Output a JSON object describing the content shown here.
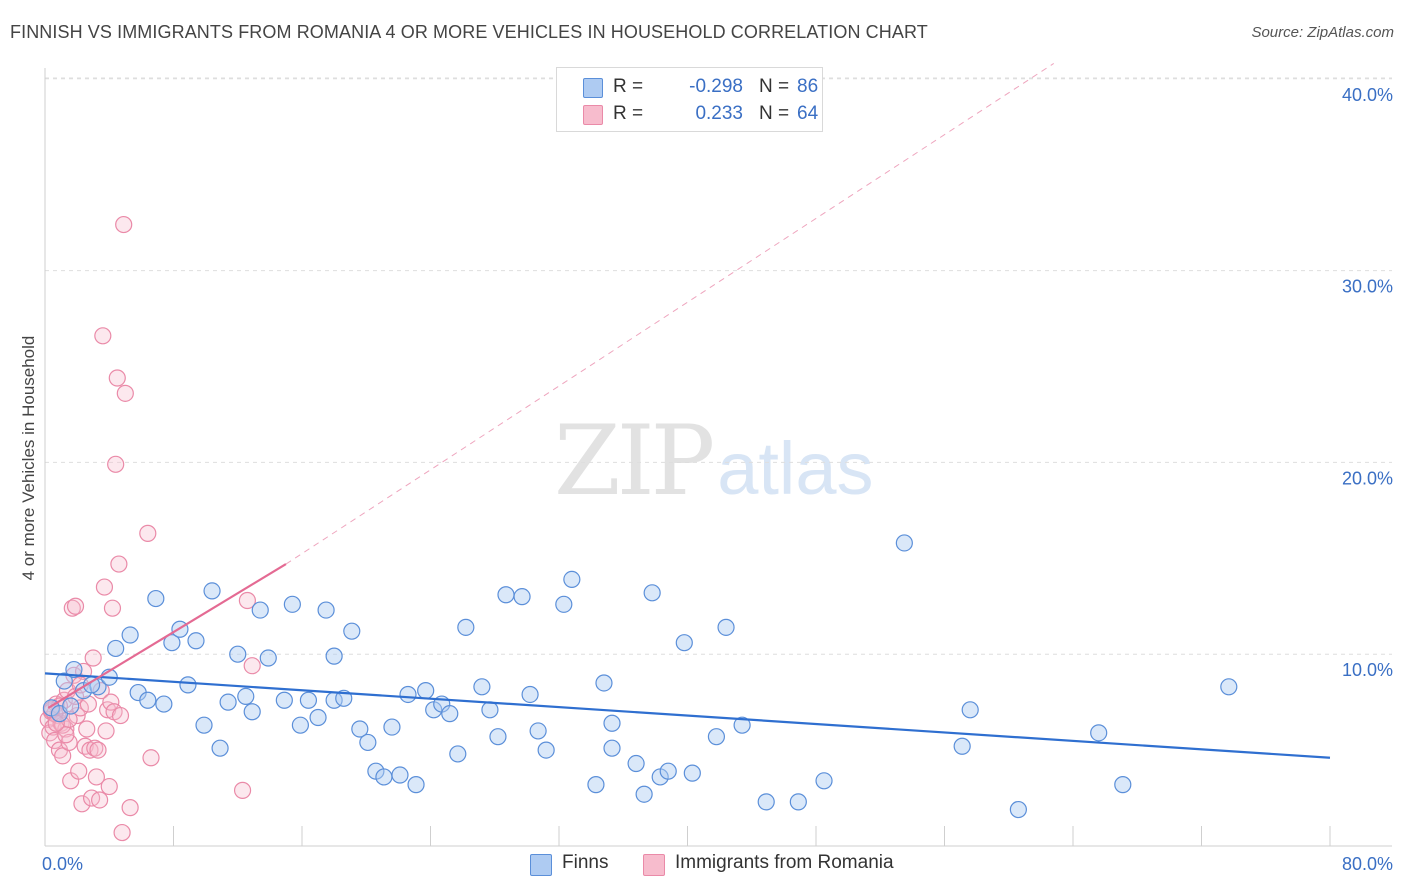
{
  "header": {
    "title": "FINNISH VS IMMIGRANTS FROM ROMANIA 4 OR MORE VEHICLES IN HOUSEHOLD CORRELATION CHART",
    "source": "Source: ZipAtlas.com"
  },
  "watermark": {
    "zip": "ZIP",
    "atlas": "atlas"
  },
  "legend": {
    "rows": [
      {
        "r_label": "R =",
        "r_value": "-0.298",
        "n_label": "N =",
        "n_value": "86",
        "color": "#aecbf2"
      },
      {
        "r_label": "R =",
        "r_value": "0.233",
        "n_label": "N =",
        "n_value": "64",
        "color": "#f7bccd"
      }
    ]
  },
  "bottom_legend": [
    {
      "label": "Finns",
      "color": "#aecbf2"
    },
    {
      "label": "Immigrants from Romania",
      "color": "#f7bccd"
    }
  ],
  "colors": {
    "finns_fill": "rgba(174,203,242,0.45)",
    "finns_stroke": "#5b8fd9",
    "finns_line": "#2f6fd0",
    "romania_fill": "rgba(247,188,205,0.35)",
    "romania_stroke": "#ea8aa8",
    "romania_line": "#e46a93",
    "axis_text": "#3a6fc4",
    "grid": "#dedede"
  },
  "chart_data": {
    "type": "scatter",
    "title": "FINNISH VS IMMIGRANTS FROM ROMANIA 4 OR MORE VEHICLES IN HOUSEHOLD CORRELATION CHART",
    "xlabel": "",
    "ylabel": "4 or more Vehicles in Household",
    "xlim": [
      0,
      80
    ],
    "ylim": [
      0,
      42
    ],
    "x_tick_labels": {
      "min": "0.0%",
      "max": "80.0%"
    },
    "y_ticks": [
      10,
      20,
      30,
      40
    ],
    "y_tick_labels": [
      "10.0%",
      "20.0%",
      "30.0%",
      "40.0%"
    ],
    "grid": "horizontal dashed",
    "legend_position": "top-center",
    "series": [
      {
        "name": "Finns",
        "points": [
          [
            0.4,
            7.2
          ],
          [
            1.2,
            8.6
          ],
          [
            1.8,
            9.2
          ],
          [
            2.4,
            8.1
          ],
          [
            3.3,
            8.3
          ],
          [
            4.0,
            8.8
          ],
          [
            4.4,
            10.3
          ],
          [
            5.3,
            11.0
          ],
          [
            5.8,
            8.0
          ],
          [
            6.4,
            7.6
          ],
          [
            6.9,
            12.9
          ],
          [
            7.4,
            7.4
          ],
          [
            7.9,
            10.6
          ],
          [
            8.4,
            11.3
          ],
          [
            8.9,
            8.4
          ],
          [
            9.4,
            10.7
          ],
          [
            9.9,
            6.3
          ],
          [
            10.4,
            13.3
          ],
          [
            10.9,
            5.1
          ],
          [
            11.4,
            7.5
          ],
          [
            12.0,
            10.0
          ],
          [
            12.5,
            7.8
          ],
          [
            12.9,
            7.0
          ],
          [
            13.4,
            12.3
          ],
          [
            13.9,
            9.8
          ],
          [
            14.9,
            7.6
          ],
          [
            15.4,
            12.6
          ],
          [
            15.9,
            6.3
          ],
          [
            16.4,
            7.6
          ],
          [
            17.0,
            6.7
          ],
          [
            17.5,
            12.3
          ],
          [
            18.0,
            7.6
          ],
          [
            18.0,
            9.9
          ],
          [
            18.6,
            7.7
          ],
          [
            19.1,
            11.2
          ],
          [
            19.6,
            6.1
          ],
          [
            20.1,
            5.4
          ],
          [
            20.6,
            3.9
          ],
          [
            21.1,
            3.6
          ],
          [
            21.6,
            6.2
          ],
          [
            22.1,
            3.7
          ],
          [
            22.6,
            7.9
          ],
          [
            23.1,
            3.2
          ],
          [
            23.7,
            8.1
          ],
          [
            24.2,
            7.1
          ],
          [
            24.7,
            7.4
          ],
          [
            25.2,
            6.9
          ],
          [
            25.7,
            4.8
          ],
          [
            26.2,
            11.4
          ],
          [
            27.2,
            8.3
          ],
          [
            27.7,
            7.1
          ],
          [
            28.2,
            5.7
          ],
          [
            28.7,
            13.1
          ],
          [
            29.7,
            13.0
          ],
          [
            30.2,
            7.9
          ],
          [
            30.7,
            6.0
          ],
          [
            31.2,
            5.0
          ],
          [
            32.3,
            12.6
          ],
          [
            32.8,
            13.9
          ],
          [
            34.3,
            3.2
          ],
          [
            34.8,
            8.5
          ],
          [
            35.3,
            6.4
          ],
          [
            35.3,
            5.1
          ],
          [
            36.8,
            4.3
          ],
          [
            37.3,
            2.7
          ],
          [
            37.8,
            13.2
          ],
          [
            38.3,
            3.6
          ],
          [
            38.8,
            3.9
          ],
          [
            39.8,
            10.6
          ],
          [
            40.3,
            3.8
          ],
          [
            41.8,
            5.7
          ],
          [
            42.4,
            11.4
          ],
          [
            43.4,
            6.3
          ],
          [
            44.9,
            2.3
          ],
          [
            46.9,
            2.3
          ],
          [
            48.5,
            3.4
          ],
          [
            53.5,
            15.8
          ],
          [
            57.1,
            5.2
          ],
          [
            57.6,
            7.1
          ],
          [
            60.6,
            1.9
          ],
          [
            65.6,
            5.9
          ],
          [
            67.1,
            3.2
          ],
          [
            73.7,
            8.3
          ],
          [
            0.9,
            6.9
          ],
          [
            2.9,
            8.4
          ],
          [
            1.6,
            7.3
          ]
        ]
      },
      {
        "name": "Immigrants from Romania",
        "points": [
          [
            0.2,
            6.6
          ],
          [
            0.3,
            5.9
          ],
          [
            0.4,
            7.0
          ],
          [
            0.5,
            6.2
          ],
          [
            0.6,
            5.5
          ],
          [
            0.7,
            7.4
          ],
          [
            0.8,
            6.8
          ],
          [
            0.9,
            5.0
          ],
          [
            1.0,
            6.4
          ],
          [
            1.1,
            4.7
          ],
          [
            1.2,
            7.6
          ],
          [
            1.3,
            6.1
          ],
          [
            1.4,
            8.1
          ],
          [
            1.5,
            5.4
          ],
          [
            1.6,
            3.4
          ],
          [
            1.7,
            12.4
          ],
          [
            1.8,
            8.9
          ],
          [
            1.9,
            12.5
          ],
          [
            2.0,
            6.8
          ],
          [
            2.1,
            3.9
          ],
          [
            2.2,
            7.2
          ],
          [
            2.3,
            2.2
          ],
          [
            2.4,
            9.1
          ],
          [
            2.5,
            5.2
          ],
          [
            2.6,
            6.1
          ],
          [
            2.7,
            7.4
          ],
          [
            2.8,
            5.0
          ],
          [
            2.9,
            2.5
          ],
          [
            3.0,
            9.8
          ],
          [
            3.1,
            5.1
          ],
          [
            3.2,
            3.6
          ],
          [
            3.3,
            5.0
          ],
          [
            3.4,
            2.4
          ],
          [
            3.5,
            8.1
          ],
          [
            3.6,
            26.6
          ],
          [
            3.7,
            13.5
          ],
          [
            3.8,
            6.0
          ],
          [
            3.9,
            7.1
          ],
          [
            4.0,
            3.1
          ],
          [
            4.1,
            7.5
          ],
          [
            4.2,
            12.4
          ],
          [
            4.3,
            7.0
          ],
          [
            4.4,
            19.9
          ],
          [
            4.5,
            24.4
          ],
          [
            4.6,
            14.7
          ],
          [
            4.7,
            6.8
          ],
          [
            4.8,
            0.7
          ],
          [
            4.9,
            32.4
          ],
          [
            5.0,
            23.6
          ],
          [
            5.3,
            2.0
          ],
          [
            6.4,
            16.3
          ],
          [
            6.6,
            4.6
          ],
          [
            12.3,
            2.9
          ],
          [
            12.6,
            12.8
          ],
          [
            12.9,
            9.4
          ],
          [
            0.6,
            6.9
          ],
          [
            0.9,
            7.3
          ],
          [
            1.1,
            6.3
          ],
          [
            1.3,
            5.8
          ],
          [
            1.5,
            6.6
          ],
          [
            1.9,
            7.8
          ],
          [
            2.2,
            8.4
          ],
          [
            0.4,
            7.1
          ],
          [
            0.7,
            6.4
          ]
        ]
      }
    ],
    "trend_lines": [
      {
        "series": "Finns",
        "x": [
          0,
          80
        ],
        "y": [
          9.0,
          4.6
        ]
      },
      {
        "series": "Immigrants from Romania",
        "x": [
          0.2,
          15.0
        ],
        "y": [
          7.2,
          14.7
        ],
        "extension_dashed_to": [
          62.8,
          40.8
        ]
      }
    ]
  }
}
